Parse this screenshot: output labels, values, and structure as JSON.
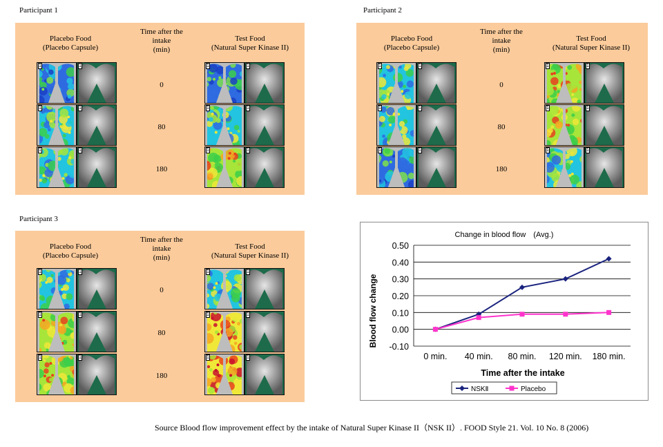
{
  "panels": [
    {
      "label": "Participant 1",
      "placebo_header": [
        "Placebo Food",
        "(Placebo Capsule)"
      ],
      "time_header": [
        "Time after the",
        "intake",
        "(min)"
      ],
      "test_header": [
        "Test Food",
        "(Natural Super Kinase II)"
      ],
      "times": [
        "0",
        "80",
        "180"
      ],
      "placebo_maps": [
        "cool",
        "mid",
        "mid"
      ],
      "test_maps": [
        "cool",
        "mid",
        "warm"
      ]
    },
    {
      "label": "Participant 2",
      "placebo_header": [
        "Placebo Food",
        "(Placebo Capsule)"
      ],
      "time_header": [
        "Time after the",
        "intake",
        "(min)"
      ],
      "test_header": [
        "Test Food",
        "(Natural Super Kinase II)"
      ],
      "times": [
        "0",
        "80",
        "180"
      ],
      "placebo_maps": [
        "mid",
        "mid",
        "cool"
      ],
      "test_maps": [
        "warm",
        "warm",
        "mid"
      ]
    },
    {
      "label": "Participant 3",
      "placebo_header": [
        "Placebo Food",
        "(Placebo Capsule)"
      ],
      "time_header": [
        "Time after the",
        "intake",
        "(min)"
      ],
      "test_header": [
        "Test Food",
        "(Natural Super Kinase II)"
      ],
      "times": [
        "0",
        "80",
        "180"
      ],
      "placebo_maps": [
        "mid",
        "warm",
        "warm"
      ],
      "test_maps": [
        "mid",
        "hot",
        "hot"
      ]
    }
  ],
  "thumb_corner": "1",
  "chart_data": {
    "type": "line",
    "title": "Change in blood flow　(Avg.)",
    "xlabel": "Time after the intake",
    "ylabel": "Blood flow change",
    "categories": [
      "0 min.",
      "40 min.",
      "80 min.",
      "120 min.",
      "180 min."
    ],
    "ylim": [
      -0.1,
      0.5
    ],
    "yticks": [
      "-0.10",
      "0.00",
      "0.10",
      "0.20",
      "0.30",
      "0.40",
      "0.50"
    ],
    "grid": true,
    "legend": "bottom",
    "series": [
      {
        "name": "NSKⅡ",
        "values": [
          0.0,
          0.09,
          0.25,
          0.3,
          0.42
        ],
        "color": "#1a237e",
        "marker": "diamond"
      },
      {
        "name": "Placebo",
        "values": [
          0.0,
          0.07,
          0.09,
          0.09,
          0.1
        ],
        "color": "#ff33cc",
        "marker": "square"
      }
    ]
  },
  "source_text": "Source  Blood flow improvement effect by the intake of Natural Super Kinase II（NSK II）. FOOD Style 21. Vol. 10 No. 8 (2006)"
}
